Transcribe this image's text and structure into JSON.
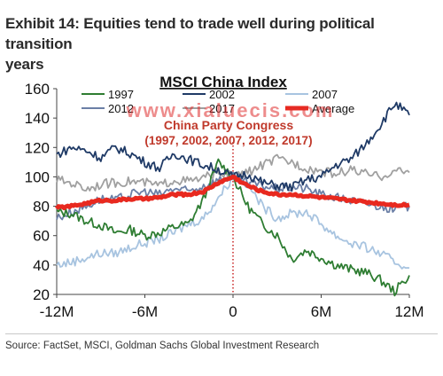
{
  "header": {
    "title_line1": "Exhibit 14: Equities tend to trade well during political transition",
    "title_line2": "years"
  },
  "footer": {
    "source": "Source: FactSet, MSCI, Goldman Sachs Global Investment Research"
  },
  "watermark": "www.xialuecis.com",
  "chart_data": {
    "type": "line",
    "title": "MSCI China Index",
    "annotation_line1": "China Party Congress",
    "annotation_line2": "(1997, 2002, 2007, 2012, 2017)",
    "xlabel": "",
    "ylabel": "",
    "xlim": [
      -12,
      12
    ],
    "ylim": [
      20,
      160
    ],
    "x_ticks": [
      {
        "value": -12,
        "label": "-12M"
      },
      {
        "value": -6,
        "label": "-6M"
      },
      {
        "value": 0,
        "label": "0"
      },
      {
        "value": 6,
        "label": "6M"
      },
      {
        "value": 12,
        "label": "12M"
      }
    ],
    "y_ticks": [
      20,
      40,
      60,
      80,
      100,
      120,
      140,
      160
    ],
    "grid": false,
    "legend": "top, inside plot, three columns",
    "series": [
      {
        "name": "1997",
        "color": "#2e7d32",
        "x": [
          -12,
          -11,
          -10,
          -9,
          -8,
          -7,
          -6,
          -5,
          -4,
          -3,
          -2,
          -1,
          0,
          1,
          2,
          3,
          4,
          5,
          6,
          7,
          8,
          9,
          10,
          11,
          12
        ],
        "values": [
          76,
          75,
          70,
          67,
          62,
          64,
          60,
          62,
          66,
          68,
          85,
          110,
          100,
          80,
          68,
          60,
          44,
          50,
          45,
          40,
          37,
          35,
          30,
          22,
          33
        ]
      },
      {
        "name": "2002",
        "color": "#1f3a66",
        "x": [
          -12,
          -11,
          -10,
          -9,
          -8,
          -7,
          -6,
          -5,
          -4,
          -3,
          -2,
          -1,
          0,
          1,
          2,
          3,
          4,
          5,
          6,
          7,
          8,
          9,
          10,
          11,
          12
        ],
        "values": [
          115,
          120,
          118,
          113,
          120,
          116,
          110,
          106,
          116,
          112,
          108,
          105,
          100,
          102,
          96,
          94,
          93,
          98,
          100,
          108,
          112,
          122,
          135,
          150,
          142
        ]
      },
      {
        "name": "2007",
        "color": "#a8c4e0",
        "x": [
          -12,
          -11,
          -10,
          -9,
          -8,
          -7,
          -6,
          -5,
          -4,
          -3,
          -2,
          -1,
          0,
          1,
          2,
          3,
          4,
          5,
          6,
          7,
          8,
          9,
          10,
          11,
          12
        ],
        "values": [
          40,
          42,
          45,
          48,
          48,
          52,
          55,
          58,
          62,
          68,
          72,
          86,
          100,
          95,
          80,
          72,
          75,
          76,
          68,
          60,
          55,
          52,
          48,
          42,
          38
        ]
      },
      {
        "name": "2012",
        "color": "#6b7fa6",
        "x": [
          -12,
          -11,
          -10,
          -9,
          -8,
          -7,
          -6,
          -5,
          -4,
          -3,
          -2,
          -1,
          0,
          1,
          2,
          3,
          4,
          5,
          6,
          7,
          8,
          9,
          10,
          11,
          12
        ],
        "values": [
          72,
          76,
          80,
          85,
          84,
          88,
          90,
          88,
          92,
          90,
          94,
          98,
          100,
          96,
          94,
          92,
          93,
          92,
          88,
          86,
          84,
          82,
          80,
          78,
          80
        ]
      },
      {
        "name": "2017",
        "color": "#a0a0a0",
        "x": [
          -12,
          -11,
          -10,
          -9,
          -8,
          -7,
          -6,
          -5,
          -4,
          -3,
          -2,
          -1,
          0,
          1,
          2,
          3,
          4,
          5,
          6,
          7,
          8,
          9,
          10,
          11,
          12
        ],
        "values": [
          98,
          96,
          92,
          95,
          96,
          97,
          96,
          94,
          98,
          97,
          99,
          104,
          100,
          103,
          108,
          112,
          110,
          106,
          104,
          102,
          105,
          102,
          100,
          104,
          103
        ]
      },
      {
        "name": "Average",
        "color": "#e8291f",
        "x": [
          -12,
          -11,
          -10,
          -9,
          -8,
          -7,
          -6,
          -5,
          -4,
          -3,
          -2,
          -1,
          0,
          1,
          2,
          3,
          4,
          5,
          6,
          7,
          8,
          9,
          10,
          11,
          12
        ],
        "values": [
          79,
          80,
          82,
          84,
          84,
          85,
          85,
          86,
          88,
          88,
          90,
          96,
          100,
          94,
          90,
          88,
          88,
          87,
          86,
          85,
          84,
          83,
          82,
          81,
          81
        ]
      }
    ],
    "vline": {
      "x": 0,
      "color": "#c00000",
      "style": "dotted"
    }
  }
}
